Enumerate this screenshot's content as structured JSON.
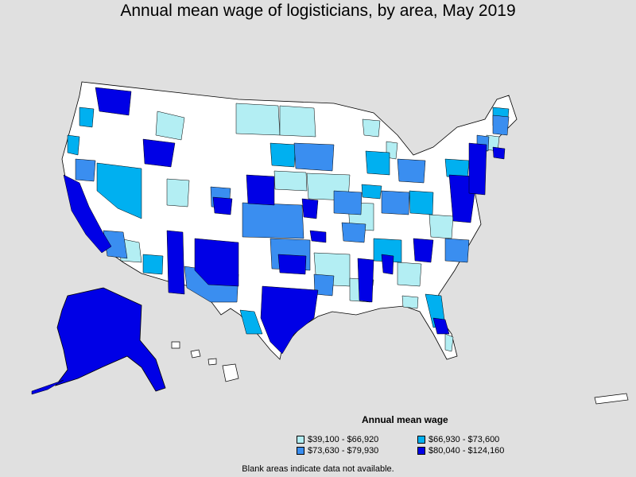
{
  "title": "Annual mean wage of logisticians, by area, May 2019",
  "legend": {
    "title": "Annual mean wage",
    "items": [
      {
        "label": "$39,100 - $66,920",
        "color": "#b3eef3"
      },
      {
        "label": "$66,930 - $73,600",
        "color": "#00b0f0"
      },
      {
        "label": "$73,630 - $79,930",
        "color": "#3a8ef0"
      },
      {
        "label": "$80,040 - $124,160",
        "color": "#0000e6"
      }
    ]
  },
  "footnote": "Blank areas indicate data not available.",
  "colors": {
    "background": "#e0e0e0",
    "no_data": "#ffffff",
    "border": "#000000"
  }
}
